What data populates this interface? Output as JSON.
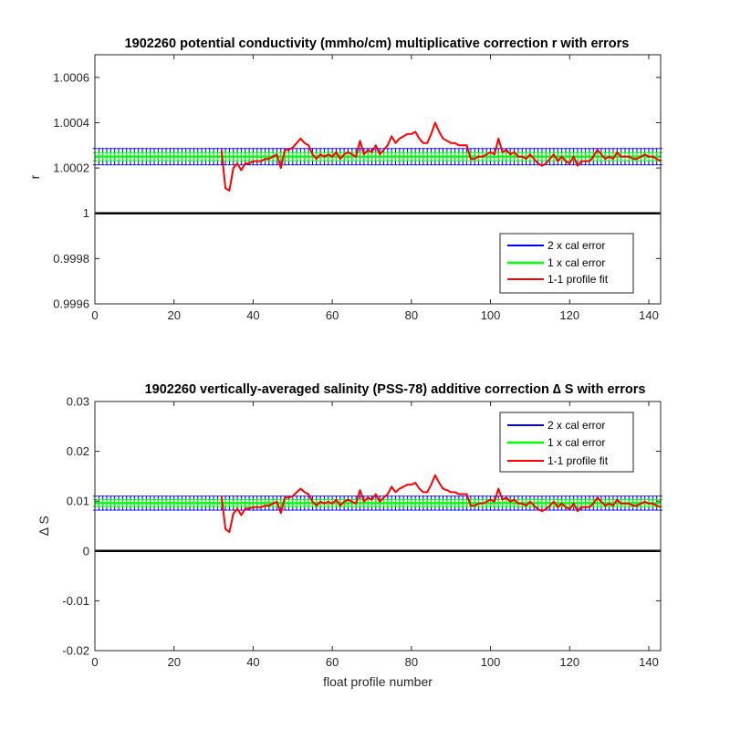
{
  "chart_data": [
    {
      "type": "line",
      "title": "1902260 potential conductivity (mmho/cm) multiplicative correction r with errors",
      "xlabel": "",
      "ylabel": "r",
      "xlim": [
        0,
        143
      ],
      "ylim": [
        0.9996,
        1.0007
      ],
      "xticks": [
        0,
        20,
        40,
        60,
        80,
        100,
        120,
        140
      ],
      "xtick_labels": [
        "0",
        "20",
        "40",
        "60",
        "80",
        "100",
        "120",
        "140"
      ],
      "yticks": [
        0.9996,
        0.9998,
        1,
        1.0002,
        1.0004,
        1.0006
      ],
      "ytick_labels": [
        "0.9996",
        "0.9998",
        "1",
        "1.0002",
        "1.0004",
        "1.0006"
      ],
      "reference_line": 1,
      "legend": {
        "position": "bottom-right",
        "entries": [
          "2 x cal error",
          "1 x cal error",
          "1-1 profile fit"
        ]
      },
      "series": [
        {
          "name": "2 x cal error",
          "color": "#0000ff",
          "fit": 1.00025,
          "err": 3.6e-05
        },
        {
          "name": "1 x cal error",
          "color": "#00ff00",
          "fit": 1.00025,
          "err": 1.8e-05
        },
        {
          "name": "1-1 profile fit",
          "color": "#ff0000",
          "x": [
            32,
            33,
            34,
            35,
            36,
            37,
            38,
            39,
            40,
            41,
            42,
            43,
            44,
            45,
            46,
            47,
            48,
            49,
            50,
            51,
            52,
            53,
            54,
            55,
            56,
            57,
            58,
            59,
            60,
            61,
            62,
            63,
            64,
            65,
            66,
            67,
            68,
            69,
            70,
            71,
            72,
            73,
            74,
            75,
            76,
            77,
            78,
            79,
            80,
            81,
            82,
            83,
            84,
            85,
            86,
            87,
            88,
            89,
            90,
            91,
            92,
            93,
            94,
            95,
            96,
            97,
            98,
            99,
            100,
            101,
            102,
            103,
            104,
            105,
            106,
            107,
            108,
            109,
            110,
            111,
            112,
            113,
            114,
            115,
            116,
            117,
            118,
            119,
            120,
            121,
            122,
            123,
            124,
            125,
            126,
            127,
            128,
            129,
            130,
            131,
            132,
            133,
            134,
            135,
            136,
            137,
            138,
            139,
            140,
            141,
            142,
            143
          ],
          "y": [
            1.00028,
            1.00011,
            1.0001,
            1.0002,
            1.00022,
            1.00019,
            1.00022,
            1.00022,
            1.00023,
            1.00023,
            1.00023,
            1.00024,
            1.00024,
            1.00025,
            1.00026,
            1.0002,
            1.00028,
            1.00028,
            1.00029,
            1.00031,
            1.00033,
            1.00031,
            1.0003,
            1.00026,
            1.00024,
            1.00026,
            1.00025,
            1.00026,
            1.00025,
            1.00027,
            1.00024,
            1.00026,
            1.00027,
            1.00026,
            1.00025,
            1.00032,
            1.00026,
            1.00028,
            1.00027,
            1.0003,
            1.00026,
            1.00028,
            1.0003,
            1.00034,
            1.00031,
            1.00033,
            1.00034,
            1.00035,
            1.00035,
            1.00036,
            1.00033,
            1.00031,
            1.00031,
            1.00035,
            1.0004,
            1.00036,
            1.00033,
            1.00032,
            1.00031,
            1.00031,
            1.0003,
            1.0003,
            1.0003,
            1.00024,
            1.00024,
            1.00025,
            1.00025,
            1.00026,
            1.00027,
            1.00026,
            1.00033,
            1.00027,
            1.00028,
            1.00026,
            1.00027,
            1.00025,
            1.00025,
            1.00024,
            1.00026,
            1.00024,
            1.00022,
            1.00021,
            1.00022,
            1.00024,
            1.00026,
            1.00023,
            1.00025,
            1.00023,
            1.00022,
            1.00025,
            1.00021,
            1.00023,
            1.00023,
            1.00023,
            1.00025,
            1.00028,
            1.00026,
            1.00024,
            1.00025,
            1.00024,
            1.00027,
            1.00025,
            1.00025,
            1.00025,
            1.00024,
            1.00024,
            1.00025,
            1.00026,
            1.00025,
            1.00025,
            1.00024,
            1.00023
          ]
        }
      ]
    },
    {
      "type": "line",
      "title": "1902260 vertically-averaged salinity (PSS-78) additive correction ∆ S with errors",
      "xlabel": "float profile number",
      "ylabel": "∆ S",
      "xlim": [
        0,
        143
      ],
      "ylim": [
        -0.02,
        0.03
      ],
      "xticks": [
        0,
        20,
        40,
        60,
        80,
        100,
        120,
        140
      ],
      "xtick_labels": [
        "0",
        "20",
        "40",
        "60",
        "80",
        "100",
        "120",
        "140"
      ],
      "yticks": [
        -0.02,
        -0.01,
        0,
        0.01,
        0.02,
        0.03
      ],
      "ytick_labels": [
        "-0.02",
        "-0.01",
        "0",
        "0.01",
        "0.02",
        "0.03"
      ],
      "reference_line": 0,
      "legend": {
        "position": "top-right",
        "entries": [
          "2 x cal error",
          "1 x cal error",
          "1-1 profile fit"
        ]
      },
      "series": [
        {
          "name": "2 x cal error",
          "color": "#0000ff",
          "fit": 0.0096,
          "err": 0.0014
        },
        {
          "name": "1 x cal error",
          "color": "#00ff00",
          "fit": 0.0096,
          "err": 0.0007
        },
        {
          "name": "1-1 profile fit",
          "color": "#ff0000",
          "x": [
            32,
            33,
            34,
            35,
            36,
            37,
            38,
            39,
            40,
            41,
            42,
            43,
            44,
            45,
            46,
            47,
            48,
            49,
            50,
            51,
            52,
            53,
            54,
            55,
            56,
            57,
            58,
            59,
            60,
            61,
            62,
            63,
            64,
            65,
            66,
            67,
            68,
            69,
            70,
            71,
            72,
            73,
            74,
            75,
            76,
            77,
            78,
            79,
            80,
            81,
            82,
            83,
            84,
            85,
            86,
            87,
            88,
            89,
            90,
            91,
            92,
            93,
            94,
            95,
            96,
            97,
            98,
            99,
            100,
            101,
            102,
            103,
            104,
            105,
            106,
            107,
            108,
            109,
            110,
            111,
            112,
            113,
            114,
            115,
            116,
            117,
            118,
            119,
            120,
            121,
            122,
            123,
            124,
            125,
            126,
            127,
            128,
            129,
            130,
            131,
            132,
            133,
            134,
            135,
            136,
            137,
            138,
            139,
            140,
            141,
            142,
            143
          ],
          "y": [
            0.011,
            0.0044,
            0.0038,
            0.0075,
            0.0085,
            0.0072,
            0.0085,
            0.0085,
            0.0088,
            0.0088,
            0.0088,
            0.0091,
            0.0091,
            0.0095,
            0.0099,
            0.0076,
            0.0107,
            0.0107,
            0.011,
            0.0118,
            0.0125,
            0.0118,
            0.0114,
            0.0099,
            0.0091,
            0.0099,
            0.0095,
            0.0099,
            0.0095,
            0.0103,
            0.0091,
            0.0099,
            0.0103,
            0.0099,
            0.0095,
            0.0122,
            0.0099,
            0.0107,
            0.0103,
            0.0114,
            0.0099,
            0.0107,
            0.0114,
            0.0129,
            0.0118,
            0.0125,
            0.0129,
            0.0133,
            0.0133,
            0.0137,
            0.0125,
            0.0118,
            0.0118,
            0.0133,
            0.0152,
            0.0137,
            0.0125,
            0.0122,
            0.0118,
            0.0118,
            0.0114,
            0.0114,
            0.0114,
            0.0091,
            0.0091,
            0.0095,
            0.0095,
            0.0099,
            0.0103,
            0.0099,
            0.0125,
            0.0103,
            0.0107,
            0.0099,
            0.0103,
            0.0095,
            0.0095,
            0.0091,
            0.0099,
            0.0091,
            0.0084,
            0.008,
            0.0084,
            0.0091,
            0.0099,
            0.0088,
            0.0095,
            0.0088,
            0.0084,
            0.0095,
            0.008,
            0.0088,
            0.0088,
            0.0088,
            0.0095,
            0.0107,
            0.0099,
            0.0091,
            0.0095,
            0.0091,
            0.0103,
            0.0095,
            0.0095,
            0.0095,
            0.0091,
            0.0091,
            0.0095,
            0.0099,
            0.0095,
            0.0095,
            0.0091,
            0.0088
          ]
        }
      ]
    }
  ]
}
